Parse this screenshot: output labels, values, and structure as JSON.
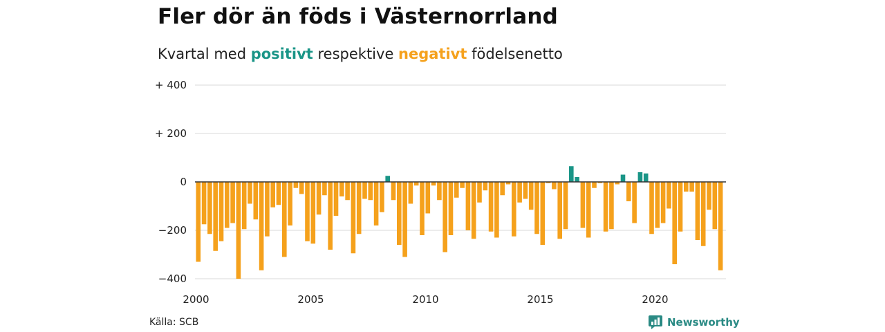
{
  "header": {
    "title": "Fler dör än föds i Västernorrland",
    "subtitle_pre": "Kvartal med ",
    "subtitle_pos": "positivt",
    "subtitle_mid": " respektive ",
    "subtitle_neg": "negativt",
    "subtitle_post": " födelsenetto"
  },
  "footer": {
    "source": "Källa: SCB",
    "brand": "Newsworthy",
    "brand_icon": "newsworthy-logo-icon"
  },
  "colors": {
    "positive": "#1a9587",
    "negative": "#f5a11c",
    "grid": "#d9d9d9",
    "zero_line": "#333333"
  },
  "chart_data": {
    "type": "bar",
    "title": "Fler dör än föds i Västernorrland",
    "subtitle": "Kvartal med positivt respektive negativt födelsenetto",
    "xlabel": "",
    "ylabel": "",
    "x_start": "2000 Q1",
    "x_ticks": [
      "2000",
      "2005",
      "2010",
      "2015",
      "2020"
    ],
    "y_ticks": [
      400,
      200,
      0,
      -200,
      -400
    ],
    "y_tick_labels": [
      "+ 400",
      "+ 200",
      "0",
      "−200",
      "−400"
    ],
    "ylim": [
      -400,
      400
    ],
    "grid": true,
    "values": [
      -330,
      -175,
      -215,
      -285,
      -245,
      -190,
      -170,
      -400,
      -195,
      -90,
      -155,
      -365,
      -225,
      -105,
      -95,
      -310,
      -180,
      -25,
      -50,
      -245,
      -255,
      -135,
      -55,
      -280,
      -140,
      -60,
      -75,
      -295,
      -215,
      -70,
      -75,
      -180,
      -125,
      25,
      -75,
      -260,
      -310,
      -90,
      -15,
      -220,
      -130,
      -15,
      -75,
      -290,
      -220,
      -65,
      -25,
      -200,
      -235,
      -85,
      -35,
      -205,
      -230,
      -55,
      -10,
      -225,
      -85,
      -70,
      -115,
      -215,
      -260,
      -5,
      -30,
      -235,
      -195,
      65,
      20,
      -190,
      -230,
      -25,
      -5,
      -205,
      -195,
      -10,
      30,
      -80,
      -170,
      40,
      35,
      -215,
      -190,
      -170,
      -110,
      -340,
      -205,
      -40,
      -40,
      -240,
      -265,
      -115,
      -195,
      -365
    ]
  }
}
